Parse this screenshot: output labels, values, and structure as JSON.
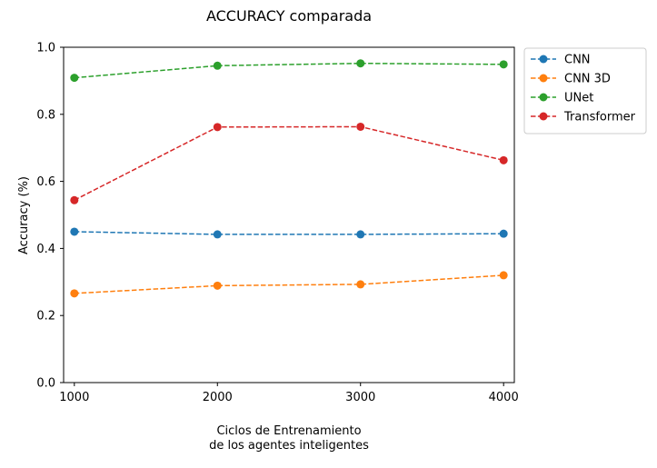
{
  "chart_data": {
    "type": "line",
    "title": "ACCURACY comparada",
    "xlabel": [
      "Ciclos de Entrenamiento",
      "de los agentes inteligentes"
    ],
    "ylabel": "Accuracy (%)",
    "x": [
      1000,
      2000,
      3000,
      4000
    ],
    "x_tick_labels": [
      "1000",
      "2000",
      "3000",
      "4000"
    ],
    "ylim": [
      0.0,
      1.0
    ],
    "y_ticks": [
      0.0,
      0.2,
      0.4,
      0.6,
      0.8,
      1.0
    ],
    "y_tick_labels": [
      "0.0",
      "0.2",
      "0.4",
      "0.6",
      "0.8",
      "1.0"
    ],
    "grid": false,
    "legend_placement": "outside-right-top",
    "line_style": "dashed",
    "marker": "circle",
    "series": [
      {
        "name": "CNN",
        "color": "#1f77b4",
        "values": [
          0.45,
          0.442,
          0.442,
          0.444
        ]
      },
      {
        "name": "CNN 3D",
        "color": "#ff7f0e",
        "values": [
          0.266,
          0.289,
          0.293,
          0.32
        ]
      },
      {
        "name": "UNet",
        "color": "#2ca02c",
        "values": [
          0.909,
          0.945,
          0.952,
          0.949
        ]
      },
      {
        "name": "Transformer",
        "color": "#d62728",
        "values": [
          0.544,
          0.762,
          0.763,
          0.663
        ]
      }
    ]
  }
}
